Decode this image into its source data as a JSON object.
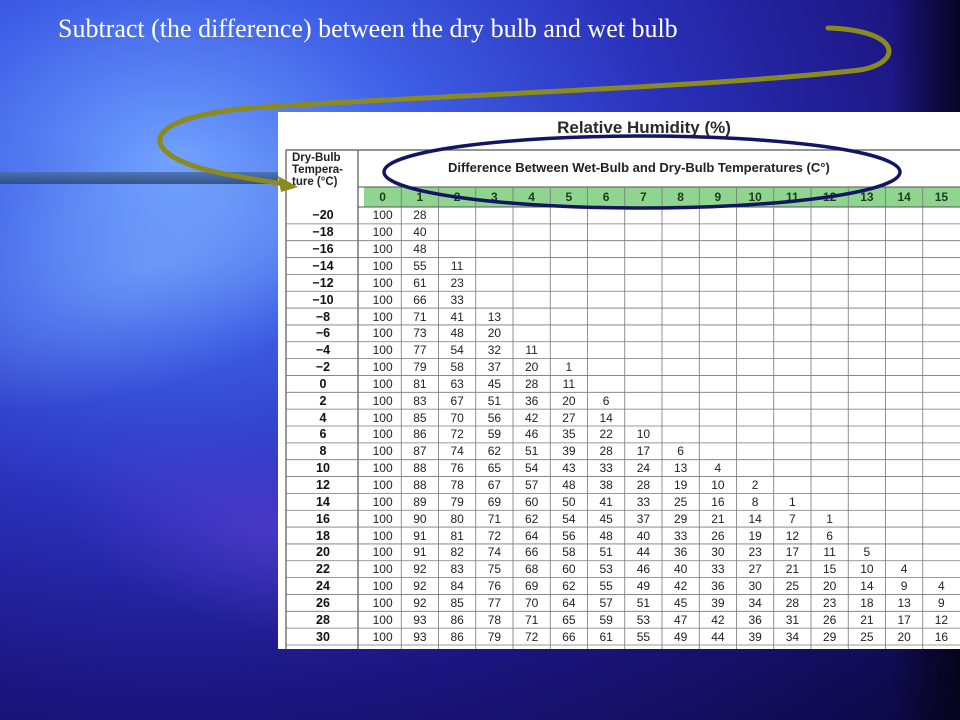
{
  "slide": {
    "title": "Subtract (the difference) between the dry bulb and wet bulb"
  },
  "table": {
    "heading": "Relative Humidity (%)",
    "column_heading": "Difference Between Wet-Bulb and Dry-Bulb Temperatures (C°)",
    "row_heading_lines": [
      "Dry-Bulb",
      "Tempera-",
      "ture (°C)"
    ],
    "columns": [
      "0",
      "1",
      "2",
      "3",
      "4",
      "5",
      "6",
      "7",
      "8",
      "9",
      "10",
      "11",
      "12",
      "13",
      "14",
      "15"
    ],
    "rows": [
      {
        "t": "−20",
        "v": [
          "100",
          "28"
        ]
      },
      {
        "t": "−18",
        "v": [
          "100",
          "40"
        ]
      },
      {
        "t": "−16",
        "v": [
          "100",
          "48"
        ]
      },
      {
        "t": "−14",
        "v": [
          "100",
          "55",
          "11"
        ]
      },
      {
        "t": "−12",
        "v": [
          "100",
          "61",
          "23"
        ]
      },
      {
        "t": "−10",
        "v": [
          "100",
          "66",
          "33"
        ]
      },
      {
        "t": "−8",
        "v": [
          "100",
          "71",
          "41",
          "13"
        ]
      },
      {
        "t": "−6",
        "v": [
          "100",
          "73",
          "48",
          "20"
        ]
      },
      {
        "t": "−4",
        "v": [
          "100",
          "77",
          "54",
          "32",
          "11"
        ]
      },
      {
        "t": "−2",
        "v": [
          "100",
          "79",
          "58",
          "37",
          "20",
          "1"
        ]
      },
      {
        "t": "0",
        "v": [
          "100",
          "81",
          "63",
          "45",
          "28",
          "11"
        ]
      },
      {
        "t": "2",
        "v": [
          "100",
          "83",
          "67",
          "51",
          "36",
          "20",
          "6"
        ]
      },
      {
        "t": "4",
        "v": [
          "100",
          "85",
          "70",
          "56",
          "42",
          "27",
          "14"
        ]
      },
      {
        "t": "6",
        "v": [
          "100",
          "86",
          "72",
          "59",
          "46",
          "35",
          "22",
          "10"
        ]
      },
      {
        "t": "8",
        "v": [
          "100",
          "87",
          "74",
          "62",
          "51",
          "39",
          "28",
          "17",
          "6"
        ]
      },
      {
        "t": "10",
        "v": [
          "100",
          "88",
          "76",
          "65",
          "54",
          "43",
          "33",
          "24",
          "13",
          "4"
        ]
      },
      {
        "t": "12",
        "v": [
          "100",
          "88",
          "78",
          "67",
          "57",
          "48",
          "38",
          "28",
          "19",
          "10",
          "2"
        ]
      },
      {
        "t": "14",
        "v": [
          "100",
          "89",
          "79",
          "69",
          "60",
          "50",
          "41",
          "33",
          "25",
          "16",
          "8",
          "1"
        ]
      },
      {
        "t": "16",
        "v": [
          "100",
          "90",
          "80",
          "71",
          "62",
          "54",
          "45",
          "37",
          "29",
          "21",
          "14",
          "7",
          "1"
        ]
      },
      {
        "t": "18",
        "v": [
          "100",
          "91",
          "81",
          "72",
          "64",
          "56",
          "48",
          "40",
          "33",
          "26",
          "19",
          "12",
          "6"
        ]
      },
      {
        "t": "20",
        "v": [
          "100",
          "91",
          "82",
          "74",
          "66",
          "58",
          "51",
          "44",
          "36",
          "30",
          "23",
          "17",
          "11",
          "5"
        ]
      },
      {
        "t": "22",
        "v": [
          "100",
          "92",
          "83",
          "75",
          "68",
          "60",
          "53",
          "46",
          "40",
          "33",
          "27",
          "21",
          "15",
          "10",
          "4"
        ]
      },
      {
        "t": "24",
        "v": [
          "100",
          "92",
          "84",
          "76",
          "69",
          "62",
          "55",
          "49",
          "42",
          "36",
          "30",
          "25",
          "20",
          "14",
          "9",
          "4"
        ]
      },
      {
        "t": "26",
        "v": [
          "100",
          "92",
          "85",
          "77",
          "70",
          "64",
          "57",
          "51",
          "45",
          "39",
          "34",
          "28",
          "23",
          "18",
          "13",
          "9"
        ]
      },
      {
        "t": "28",
        "v": [
          "100",
          "93",
          "86",
          "78",
          "71",
          "65",
          "59",
          "53",
          "47",
          "42",
          "36",
          "31",
          "26",
          "21",
          "17",
          "12"
        ]
      },
      {
        "t": "30",
        "v": [
          "100",
          "93",
          "86",
          "79",
          "72",
          "66",
          "61",
          "55",
          "49",
          "44",
          "39",
          "34",
          "29",
          "25",
          "20",
          "16"
        ]
      }
    ]
  },
  "colors": {
    "header_band": "#8fd48f",
    "annotation_outline": "#141464",
    "arrow": "#8a8a1e"
  }
}
